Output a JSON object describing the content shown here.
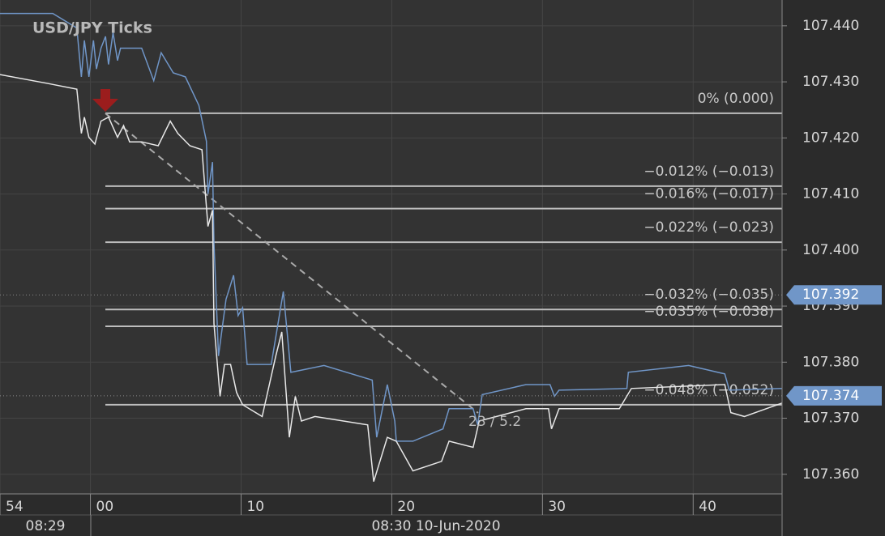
{
  "chart_data": {
    "type": "line",
    "title": "USD/JPY  Ticks",
    "xlim": [
      -6,
      45.9
    ],
    "ylim": [
      107.3565,
      107.4446
    ],
    "xticks": [
      {
        "value": -6,
        "label": "54"
      },
      {
        "value": 0,
        "label": "00"
      },
      10,
      20,
      30,
      40
    ],
    "yticks": [
      {
        "value": 107.44,
        "label": "107.440"
      },
      {
        "value": 107.43,
        "label": "107.430"
      },
      {
        "value": 107.42,
        "label": "107.420"
      },
      {
        "value": 107.41,
        "label": "107.410"
      },
      {
        "value": 107.4,
        "label": "107.400"
      },
      {
        "value": 107.39,
        "label": "107.390"
      },
      {
        "value": 107.38,
        "label": "107.380"
      },
      {
        "value": 107.37,
        "label": "107.370"
      },
      {
        "value": 107.36,
        "label": "107.360"
      }
    ],
    "grid": true,
    "time_labels": [
      "08:29",
      "08:30 10-Jun-2020"
    ],
    "series": [
      {
        "color": "#7096c8",
        "x": [
          -6.0,
          -2.5,
          -0.9,
          -0.6,
          -0.4,
          -0.1,
          0.2,
          0.4,
          0.7,
          1.0,
          1.2,
          1.5,
          1.8,
          2.0,
          3.4,
          4.2,
          4.7,
          5.5,
          6.3,
          7.2,
          7.7,
          7.8,
          8.1,
          8.2,
          8.5,
          9.0,
          9.5,
          9.8,
          10.1,
          10.4,
          12.0,
          12.8,
          13.3,
          15.5,
          18.7,
          19.0,
          19.7,
          20.2,
          20.3,
          21.4,
          23.4,
          23.8,
          25.4,
          25.7,
          26.0,
          28.9,
          30.5,
          30.8,
          31.1,
          35.6,
          35.7,
          39.7,
          42.1,
          42.4,
          45.9
        ],
        "values": [
          107.4422,
          107.4422,
          107.4396,
          107.4309,
          107.4374,
          107.4309,
          107.4374,
          107.4323,
          107.436,
          107.4381,
          107.4331,
          107.4388,
          107.4338,
          107.436,
          107.436,
          107.4302,
          107.4352,
          107.4316,
          107.4309,
          107.4258,
          107.4194,
          107.41,
          107.4157,
          107.4013,
          107.3811,
          107.3912,
          107.3955,
          107.3883,
          107.3897,
          107.3796,
          107.3796,
          107.3926,
          107.3782,
          107.3794,
          107.3768,
          107.3666,
          107.376,
          107.3695,
          107.3659,
          107.3659,
          107.3681,
          107.3717,
          107.3717,
          107.3688,
          107.3742,
          107.376,
          107.376,
          107.3739,
          107.375,
          107.3753,
          107.3782,
          107.3794,
          107.3779,
          107.375,
          107.3753
        ]
      },
      {
        "color": "#e8e8e8",
        "x": [
          -6.0,
          -2.8,
          -0.9,
          -0.6,
          -0.4,
          -0.1,
          0.3,
          0.7,
          1.2,
          1.8,
          2.2,
          2.6,
          3.4,
          4.5,
          5.3,
          5.8,
          6.6,
          7.4,
          7.8,
          8.1,
          8.2,
          8.6,
          8.9,
          9.3,
          9.7,
          10.1,
          11.4,
          12.3,
          12.7,
          13.2,
          13.6,
          14.0,
          14.9,
          18.4,
          18.8,
          19.7,
          20.3,
          21.4,
          23.3,
          23.8,
          25.4,
          25.8,
          28.9,
          30.4,
          30.6,
          31.1,
          35.1,
          35.9,
          42.1,
          42.5,
          43.4,
          45.9
        ],
        "values": [
          107.4313,
          107.4297,
          107.4287,
          107.4208,
          107.4237,
          107.4201,
          107.4189,
          107.423,
          107.4237,
          107.4201,
          107.4222,
          107.4193,
          107.4193,
          107.4186,
          107.423,
          107.4208,
          107.4186,
          107.4179,
          107.4042,
          107.4071,
          107.3869,
          107.3739,
          107.3796,
          107.3796,
          107.3746,
          107.3724,
          107.3703,
          107.3811,
          107.3854,
          107.3666,
          107.3739,
          107.3695,
          107.3703,
          107.3688,
          107.3587,
          107.3666,
          107.3659,
          107.3606,
          107.3623,
          107.3659,
          107.3648,
          107.3695,
          107.3717,
          107.3717,
          107.3681,
          107.3717,
          107.3717,
          107.3753,
          107.376,
          107.371,
          107.3703,
          107.3727
        ]
      }
    ],
    "levels": [
      {
        "label": "0% (0.000)",
        "value": 107.4244
      },
      {
        "label": "−0.012% (−0.013)",
        "value": 107.4114
      },
      {
        "label": "−0.016% (−0.017)",
        "value": 107.4074
      },
      {
        "label": "−0.022% (−0.023)",
        "value": 107.4014
      },
      {
        "label": "−0.032% (−0.035)",
        "value": 107.3894
      },
      {
        "label": "−0.035% (−0.038)",
        "value": 107.3864
      },
      {
        "label": "−0.048% (−0.052)",
        "value": 107.3724
      }
    ],
    "annotation": "23 / 5.2",
    "price_markers": [
      107.392,
      107.374
    ]
  }
}
